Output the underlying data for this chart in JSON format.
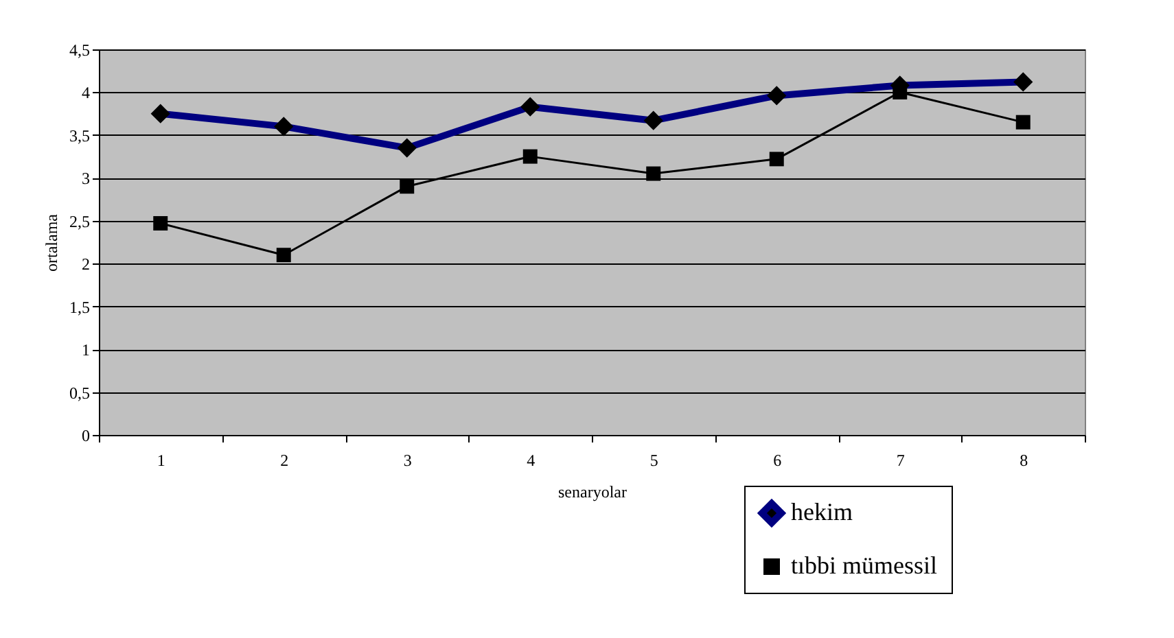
{
  "chart_data": {
    "type": "line",
    "xlabel": "senaryolar",
    "ylabel": "ortalama",
    "categories": [
      "1",
      "2",
      "3",
      "4",
      "5",
      "6",
      "7",
      "8"
    ],
    "ylim": [
      0,
      4.5
    ],
    "yticks": [
      0,
      {
        "value": 0.5,
        "label": "0,5"
      },
      1,
      {
        "value": 1.5,
        "label": "1,5"
      },
      2,
      {
        "value": 2.5,
        "label": "2,5"
      },
      3,
      {
        "value": 3.5,
        "label": "3,5"
      },
      4,
      {
        "value": 4.5,
        "label": "4,5"
      }
    ],
    "grid": "y",
    "legend": "bottom right",
    "series": [
      {
        "name": "hekim",
        "color": "#000080",
        "marker": "diamond",
        "values": [
          3.75,
          3.6,
          3.35,
          3.83,
          3.67,
          3.96,
          4.08,
          4.12
        ]
      },
      {
        "name": "tıbbi mümessil",
        "color": "#000000",
        "marker": "square",
        "values": [
          2.47,
          2.1,
          2.9,
          3.25,
          3.05,
          3.22,
          4.0,
          3.65
        ]
      }
    ]
  }
}
